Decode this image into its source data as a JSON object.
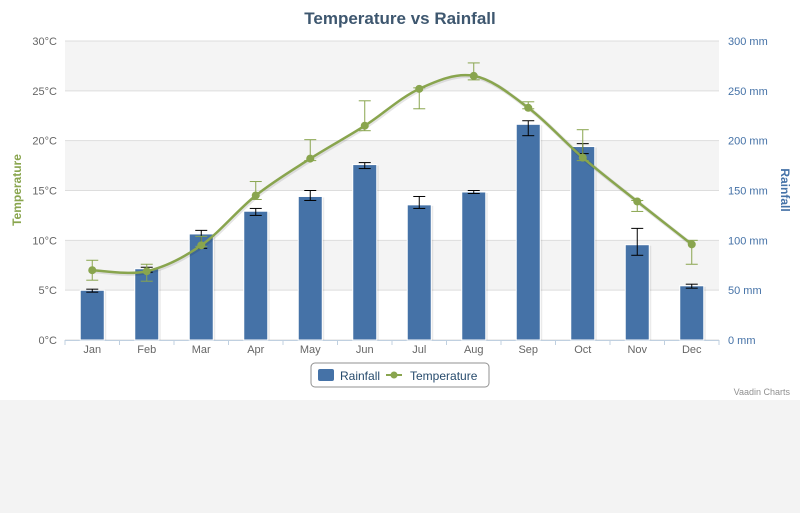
{
  "chart_data": {
    "type": "bar",
    "title": "Temperature vs Rainfall",
    "categories": [
      "Jan",
      "Feb",
      "Mar",
      "Apr",
      "May",
      "Jun",
      "Jul",
      "Aug",
      "Sep",
      "Oct",
      "Nov",
      "Dec"
    ],
    "y_left": {
      "title": "Temperature",
      "unit_suffix": "°C",
      "range": [
        0,
        30
      ],
      "ticks": [
        "0°C",
        "5°C",
        "10°C",
        "15°C",
        "20°C",
        "25°C",
        "30°C"
      ]
    },
    "y_right": {
      "title": "Rainfall",
      "unit_suffix": " mm",
      "range": [
        0,
        300
      ],
      "ticks": [
        "0 mm",
        "50 mm",
        "100 mm",
        "150 mm",
        "200 mm",
        "250 mm",
        "300 mm"
      ]
    },
    "series": [
      {
        "name": "Rainfall",
        "type": "column",
        "axis": "right",
        "color": "#4572a7",
        "values": [
          49.9,
          71.5,
          106.4,
          129.2,
          144.0,
          176.0,
          135.6,
          148.5,
          216.4,
          194.1,
          95.6,
          54.4
        ],
        "error_bars": [
          [
            48,
            51
          ],
          [
            68,
            73
          ],
          [
            92,
            110
          ],
          [
            125,
            132
          ],
          [
            140,
            150
          ],
          [
            172,
            178
          ],
          [
            132,
            144
          ],
          [
            147,
            150
          ],
          [
            205,
            220
          ],
          [
            187,
            197
          ],
          [
            85,
            112
          ],
          [
            52,
            56
          ]
        ]
      },
      {
        "name": "Temperature",
        "type": "spline",
        "axis": "left",
        "color": "#89a54e",
        "values": [
          7.0,
          6.9,
          9.5,
          14.5,
          18.2,
          21.5,
          25.2,
          26.5,
          23.3,
          18.3,
          13.9,
          9.6
        ],
        "error_bars": [
          [
            6,
            8
          ],
          [
            5.9,
            7.6
          ],
          [
            9.4,
            10.4
          ],
          [
            14.1,
            15.9
          ],
          [
            18.0,
            20.1
          ],
          [
            21.0,
            24.0
          ],
          [
            23.2,
            25.3
          ],
          [
            26.1,
            27.8
          ],
          [
            23.2,
            23.9
          ],
          [
            18.0,
            21.1
          ],
          [
            12.9,
            14.0
          ],
          [
            7.6,
            10.0
          ]
        ]
      }
    ],
    "legend": {
      "position": "bottom-center",
      "items": [
        "Rainfall",
        "Temperature"
      ]
    },
    "grid": true,
    "alternate_grid_band_color": "#f4f4f4",
    "credits": "Vaadin Charts"
  }
}
